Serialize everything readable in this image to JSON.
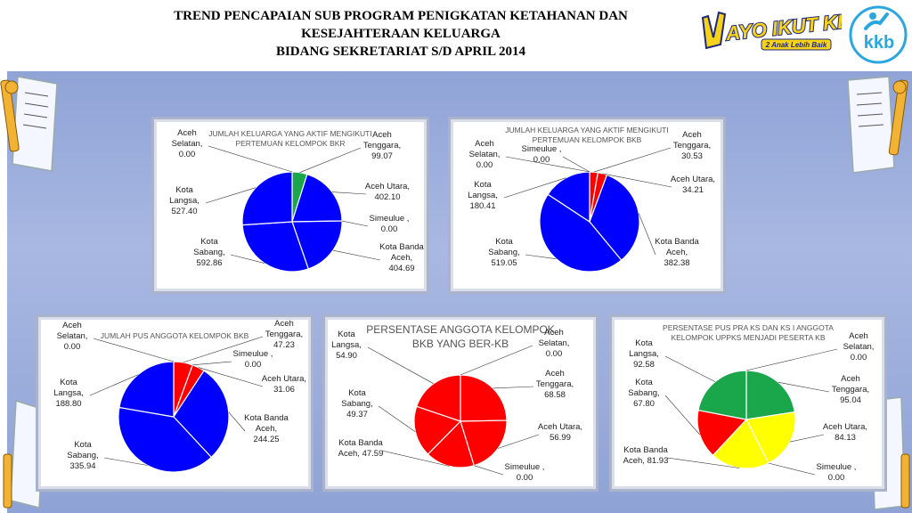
{
  "header": {
    "title_line1": "TREND PENCAPAIAN SUB PROGRAM PENIGKATAN KETAHANAN DAN",
    "title_line2": "KESEJAHTERAAN KELUARGA",
    "title_line3": "BIDANG SEKRETARIAT S/D  APRIL 2014"
  },
  "logos": {
    "ayo_text": "AYO IKUT KB",
    "ayo_tagline": "2 Anak Lebih Baik",
    "kkb_text": "kkb"
  },
  "colors": {
    "blue": "#0000ff",
    "green": "#1aa64a",
    "red": "#ff0000",
    "yellow": "#ffff00",
    "panel": "#9fb0dd"
  },
  "chart_data": [
    {
      "type": "pie",
      "title_line1": "JUMLAH KELUARGA YANG AKTIF MENGIKUTI",
      "title_line2": "PERTEMUAN KELOMPOK BKR",
      "slices": [
        {
          "name": "Aceh Tenggara",
          "value": 99.07,
          "label": [
            "Aceh",
            "Tenggara,",
            "99.07"
          ],
          "color": "#1aa64a"
        },
        {
          "name": "Aceh Utara",
          "value": 402.1,
          "label": [
            "Aceh Utara,",
            "402.10"
          ],
          "color": "#0000ff"
        },
        {
          "name": "Simeulue",
          "value": 0.0,
          "label": [
            "Simeulue ,",
            "0.00"
          ],
          "color": "#0000ff"
        },
        {
          "name": "Kota Banda Aceh",
          "value": 404.69,
          "label": [
            "Kota Banda",
            "Aceh,",
            "404.69"
          ],
          "color": "#0000ff"
        },
        {
          "name": "Kota Sabang",
          "value": 592.86,
          "label": [
            "Kota",
            "Sabang,",
            "592.86"
          ],
          "color": "#0000ff"
        },
        {
          "name": "Kota Langsa",
          "value": 527.4,
          "label": [
            "Kota",
            "Langsa,",
            "527.40"
          ],
          "color": "#0000ff"
        },
        {
          "name": "Aceh Selatan",
          "value": 0.0,
          "label": [
            "Aceh",
            "Selatan,",
            "0.00"
          ],
          "color": "#0000ff"
        }
      ]
    },
    {
      "type": "pie",
      "title_line1": "JUMLAH KELUARGA YANG AKTIF MENGIKUTI",
      "title_line2": "PERTEMUAN KELOMPOK BKB",
      "slices": [
        {
          "name": "Aceh Tenggara",
          "value": 30.53,
          "label": [
            "Aceh",
            "Tenggara,",
            "30.53"
          ],
          "color": "#ff0000"
        },
        {
          "name": "Aceh Utara",
          "value": 34.21,
          "label": [
            "Aceh Utara,",
            "34.21"
          ],
          "color": "#ff0000"
        },
        {
          "name": "Kota Banda Aceh",
          "value": 382.38,
          "label": [
            "Kota Banda",
            "Aceh,",
            "382.38"
          ],
          "color": "#0000ff"
        },
        {
          "name": "Kota Sabang",
          "value": 519.05,
          "label": [
            "Kota",
            "Sabang,",
            "519.05"
          ],
          "color": "#0000ff"
        },
        {
          "name": "Kota Langsa",
          "value": 180.41,
          "label": [
            "Kota",
            "Langsa,",
            "180.41"
          ],
          "color": "#0000ff"
        },
        {
          "name": "Aceh Selatan",
          "value": 0.0,
          "label": [
            "Aceh",
            "Selatan,",
            "0.00"
          ],
          "color": "#0000ff"
        },
        {
          "name": "Simeulue",
          "value": 0.0,
          "label": [
            "Simeulue ,",
            "0.00"
          ],
          "color": "#0000ff"
        }
      ]
    },
    {
      "type": "pie",
      "title_line1": "JUMLAH PUS ANGGOTA KELOMPOK BKB",
      "title_line2": "",
      "slices": [
        {
          "name": "Aceh Tenggara",
          "value": 47.23,
          "label": [
            "Aceh",
            "Tenggara,",
            "47.23"
          ],
          "color": "#ff0000"
        },
        {
          "name": "Simeulue",
          "value": 0.0,
          "label": [
            "Simeulue ,",
            "0.00"
          ],
          "color": "#ff0000"
        },
        {
          "name": "Aceh Utara",
          "value": 31.06,
          "label": [
            "Aceh Utara,",
            "31.06"
          ],
          "color": "#ff0000"
        },
        {
          "name": "Kota Banda Aceh",
          "value": 244.25,
          "label": [
            "Kota Banda",
            "Aceh,",
            "244.25"
          ],
          "color": "#0000ff"
        },
        {
          "name": "Kota Sabang",
          "value": 335.94,
          "label": [
            "Kota",
            "Sabang,",
            "335.94"
          ],
          "color": "#0000ff"
        },
        {
          "name": "Kota Langsa",
          "value": 188.8,
          "label": [
            "Kota",
            "Langsa,",
            "188.80"
          ],
          "color": "#0000ff"
        },
        {
          "name": "Aceh Selatan",
          "value": 0.0,
          "label": [
            "Aceh",
            "Selatan,",
            "0.00"
          ],
          "color": "#0000ff"
        }
      ]
    },
    {
      "type": "pie",
      "title_line1": "PERSENTASE ANGGOTA KELOMPOK",
      "title_line2": "BKB YANG BER-KB",
      "slices": [
        {
          "name": "Aceh Selatan",
          "value": 0.0,
          "label": [
            "Aceh",
            "Selatan,",
            "0.00"
          ],
          "color": "#ff0000"
        },
        {
          "name": "Aceh Tenggara",
          "value": 68.58,
          "label": [
            "Aceh",
            "Tenggara,",
            "68.58"
          ],
          "color": "#ff0000"
        },
        {
          "name": "Aceh Utara",
          "value": 56.99,
          "label": [
            "Aceh Utara,",
            "56.99"
          ],
          "color": "#ff0000"
        },
        {
          "name": "Simeulue",
          "value": 0.0,
          "label": [
            "Simeulue ,",
            "0.00"
          ],
          "color": "#ff0000"
        },
        {
          "name": "Kota Banda Aceh",
          "value": 47.59,
          "label": [
            "Kota Banda",
            "Aceh, 47.59"
          ],
          "color": "#ff0000"
        },
        {
          "name": "Kota Sabang",
          "value": 49.37,
          "label": [
            "Kota",
            "Sabang,",
            "49.37"
          ],
          "color": "#ff0000"
        },
        {
          "name": "Kota Langsa",
          "value": 54.9,
          "label": [
            "Kota",
            "Langsa,",
            "54.90"
          ],
          "color": "#ff0000"
        }
      ]
    },
    {
      "type": "pie",
      "title_line1": "PERSENTASE PUS PRA KS DAN KS I ANGGOTA",
      "title_line2": "KELOMPOK UPPKS MENJADI PESERTA KB",
      "slices": [
        {
          "name": "Aceh Selatan",
          "value": 0.0,
          "label": [
            "Aceh",
            "Selatan,",
            "0.00"
          ],
          "color": "#1aa64a"
        },
        {
          "name": "Aceh Tenggara",
          "value": 95.04,
          "label": [
            "Aceh",
            "Tenggara,",
            "95.04"
          ],
          "color": "#1aa64a"
        },
        {
          "name": "Aceh Utara",
          "value": 84.13,
          "label": [
            "Aceh Utara,",
            "84.13"
          ],
          "color": "#ffff00"
        },
        {
          "name": "Simeulue",
          "value": 0.0,
          "label": [
            "Simeulue ,",
            "0.00"
          ],
          "color": "#ffff00"
        },
        {
          "name": "Kota Banda Aceh",
          "value": 81.93,
          "label": [
            "Kota Banda",
            "Aceh, 81.93"
          ],
          "color": "#ffff00"
        },
        {
          "name": "Kota Sabang",
          "value": 67.8,
          "label": [
            "Kota",
            "Sabang,",
            "67.80"
          ],
          "color": "#ff0000"
        },
        {
          "name": "Kota Langsa",
          "value": 92.58,
          "label": [
            "Kota",
            "Langsa,",
            "92.58"
          ],
          "color": "#1aa64a"
        }
      ]
    }
  ]
}
